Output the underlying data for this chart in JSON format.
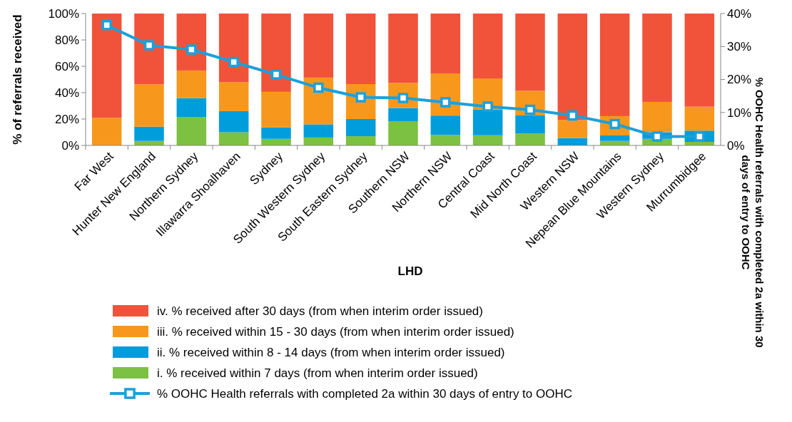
{
  "chart_data": {
    "type": "bar",
    "stacked": true,
    "xlabel": "LHD",
    "ylabel": "% of referrals received",
    "y2label": "% OOHC Health referrals with completed 2a within 30 days of entry to OOHC",
    "categories": [
      "Far West",
      "Hunter New England",
      "Northern Sydney",
      "Illawarra Shoalhaven",
      "Sydney",
      "South Western Sydney",
      "South Eastern Sydney",
      "Southern NSW",
      "Northern NSW",
      "Central Coast",
      "Mid North Coast",
      "Western NSW",
      "Nepean Blue Mountains",
      "Western Sydney",
      "Murrumbidgee"
    ],
    "series": [
      {
        "name": "i. % received within 7 days (from when interim order issued)",
        "color": "#7dc142",
        "values": [
          0,
          3.4,
          21.6,
          10,
          5,
          6,
          7,
          18.4,
          8,
          7.7,
          9,
          0,
          3.4,
          5,
          2.7
        ]
      },
      {
        "name": "ii. % received within 8 - 14 days (from when interim order issued)",
        "color": "#009ddc",
        "values": [
          0,
          10.8,
          14.3,
          16,
          8.6,
          10,
          13,
          10,
          14.6,
          19.3,
          13.7,
          5.6,
          4.2,
          5,
          8.5
        ]
      },
      {
        "name": "iii. % received within 15 - 30 days (from when interim order issued)",
        "color": "#f7981d",
        "values": [
          21,
          32.1,
          20.9,
          22,
          27,
          35.4,
          26.5,
          19,
          32,
          23.8,
          18.7,
          13.7,
          14.6,
          23,
          18.2
        ]
      },
      {
        "name": "iv. % received after 30 days (from when interim order issued)",
        "color": "#f0533a",
        "values": [
          79,
          53.7,
          43.2,
          52,
          59.4,
          48.6,
          53.5,
          52.6,
          45.4,
          49.2,
          58.6,
          80.7,
          77.8,
          67,
          70.6
        ]
      },
      {
        "name": "% OOHC Health referrals with completed 2a within 30 days of entry to OOHC",
        "type": "line",
        "axis": "y2",
        "marker": "square",
        "color": "#1ba1db",
        "values": [
          36.5,
          30.4,
          29.1,
          25.3,
          21.5,
          17.5,
          14.6,
          14.4,
          13.1,
          11.8,
          10.8,
          9.1,
          6.5,
          2.7,
          2.7
        ]
      }
    ],
    "ylim": [
      0,
      100
    ],
    "yticks": [
      {
        "value": 0,
        "label": "0%"
      },
      {
        "value": 20,
        "label": "20%"
      },
      {
        "value": 40,
        "label": "40%"
      },
      {
        "value": 60,
        "label": "60%"
      },
      {
        "value": 80,
        "label": "80%"
      },
      {
        "value": 100,
        "label": "100%"
      }
    ],
    "y2lim": [
      0,
      40
    ],
    "y2ticks": [
      {
        "value": 0,
        "label": "0%"
      },
      {
        "value": 10,
        "label": "10%"
      },
      {
        "value": 20,
        "label": "20%"
      },
      {
        "value": 30,
        "label": "30%"
      },
      {
        "value": 40,
        "label": "40%"
      }
    ],
    "legend": "bottom",
    "grid": false
  }
}
